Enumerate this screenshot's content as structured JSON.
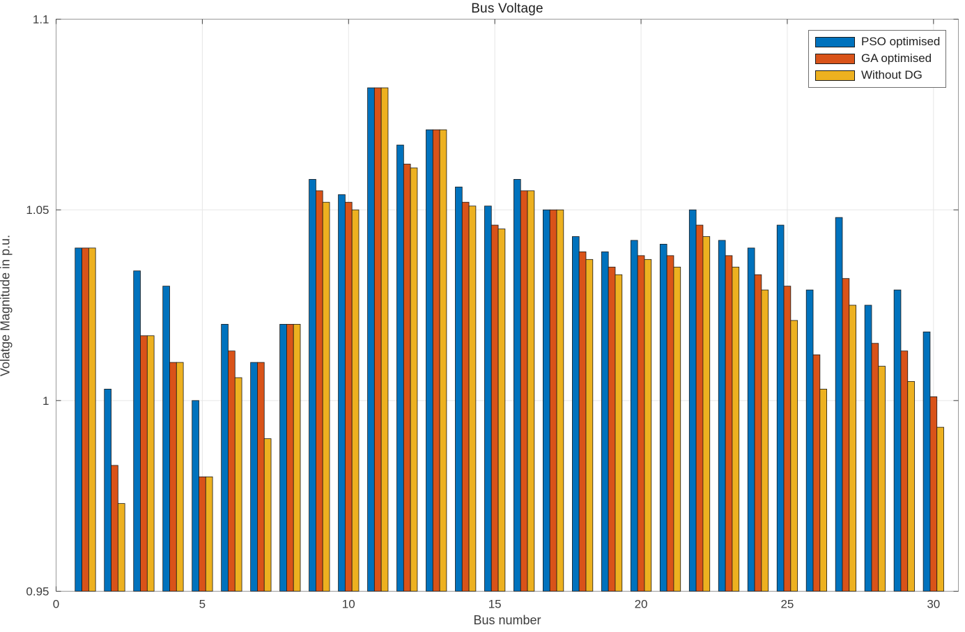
{
  "figure": {
    "title": "Bus Voltage"
  },
  "chart_data": {
    "type": "bar",
    "title": "Bus Voltage",
    "xlabel": "Bus number",
    "ylabel": "Volatge Magnitude in p.u.",
    "grid": true,
    "legend_position": "top-right",
    "xlim": [
      0,
      30.85
    ],
    "ylim": [
      0.95,
      1.1
    ],
    "xticks": [
      0,
      5,
      10,
      15,
      20,
      25,
      30
    ],
    "xtick_labels": [
      "0",
      "5",
      "10",
      "15",
      "20",
      "25",
      "30"
    ],
    "yticks": [
      0.95,
      1.0,
      1.05,
      1.1
    ],
    "ytick_labels": [
      "0.95",
      "1",
      "1.05",
      "1.1"
    ],
    "categories": [
      1,
      2,
      3,
      4,
      5,
      6,
      7,
      8,
      9,
      10,
      11,
      12,
      13,
      14,
      15,
      16,
      17,
      18,
      19,
      20,
      21,
      22,
      23,
      24,
      25,
      26,
      27,
      28,
      29,
      30
    ],
    "series": [
      {
        "name": "PSO optimised",
        "color": "#0072BD",
        "values": [
          1.04,
          1.003,
          1.034,
          1.03,
          1.0,
          1.02,
          1.01,
          1.02,
          1.058,
          1.054,
          1.082,
          1.067,
          1.071,
          1.056,
          1.051,
          1.058,
          1.05,
          1.043,
          1.039,
          1.042,
          1.041,
          1.05,
          1.042,
          1.04,
          1.046,
          1.029,
          1.048,
          1.025,
          1.029,
          1.018
        ]
      },
      {
        "name": "GA optimised",
        "color": "#D95319",
        "values": [
          1.04,
          0.983,
          1.017,
          1.01,
          0.98,
          1.013,
          1.01,
          1.02,
          1.055,
          1.052,
          1.082,
          1.062,
          1.071,
          1.052,
          1.046,
          1.055,
          1.05,
          1.039,
          1.035,
          1.038,
          1.038,
          1.046,
          1.038,
          1.033,
          1.03,
          1.012,
          1.032,
          1.015,
          1.013,
          1.001
        ]
      },
      {
        "name": "Without DG",
        "color": "#EDB120",
        "values": [
          1.04,
          0.973,
          1.017,
          1.01,
          0.98,
          1.006,
          0.99,
          1.02,
          1.052,
          1.05,
          1.082,
          1.061,
          1.071,
          1.051,
          1.045,
          1.055,
          1.05,
          1.037,
          1.033,
          1.037,
          1.035,
          1.043,
          1.035,
          1.029,
          1.021,
          1.003,
          1.025,
          1.009,
          1.005,
          0.993
        ]
      }
    ],
    "style": {
      "background": "#ffffff",
      "grid_color": "#e6e6e6",
      "axis_box_color": "#999999",
      "tick_color": "#3f3f3f",
      "bar_edge_color": "#1a1a1a",
      "text_color": "#3c3c3c"
    }
  }
}
